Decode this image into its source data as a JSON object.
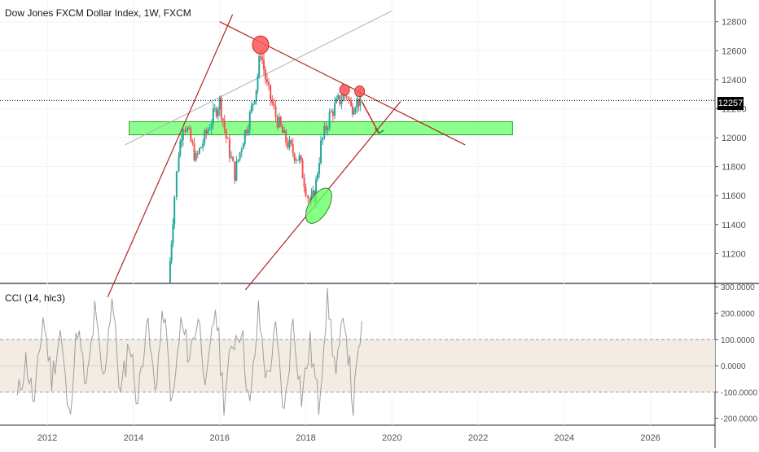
{
  "header": {
    "title": "Dow Jones FXCM Dollar Index, 1W, FXCM",
    "indicator_title": "CCI (14, hlc3)",
    "last_price_label": "12257"
  },
  "colors": {
    "up": "#26a69a",
    "down": "#ef5350",
    "trendline": "#b22222",
    "support_zone": "#66ff66",
    "cci_line": "#9e9e9e",
    "cci_band": "#f2ece3"
  },
  "chart_data": [
    {
      "type": "candlestick",
      "title": "Dow Jones FXCM Dollar Index, 1W, FXCM",
      "x_ticks": [
        "2012",
        "2014",
        "2016",
        "2018",
        "2020",
        "2022",
        "2024",
        "2026"
      ],
      "y_ticks": [
        "11200",
        "11400",
        "11600",
        "11800",
        "12000",
        "12200",
        "12400",
        "12600",
        "12800"
      ],
      "ylim": [
        11000,
        12950
      ],
      "xlim": [
        2010.9,
        2027.5
      ],
      "last_price": 12257,
      "series": [
        {
          "x": [
            2014.85,
            2014.95,
            2015.05,
            2015.15,
            2015.25,
            2015.45,
            2015.65,
            2015.85,
            2016.0,
            2016.15,
            2016.35,
            2016.55,
            2016.7,
            2016.85,
            2016.95,
            2017.1,
            2017.3,
            2017.5,
            2017.7,
            2017.85,
            2018.0,
            2018.1,
            2018.2,
            2018.35,
            2018.55,
            2018.75,
            2018.95,
            2019.05,
            2019.15,
            2019.3
          ],
          "values": [
            11150,
            11600,
            11900,
            12100,
            12050,
            11850,
            12000,
            12150,
            12250,
            12000,
            11750,
            12000,
            12150,
            12350,
            12600,
            12350,
            12150,
            12000,
            11900,
            11850,
            11650,
            11550,
            11600,
            11950,
            12150,
            12250,
            12300,
            12200,
            12250,
            12257
          ]
        }
      ],
      "annotations": [
        {
          "type": "channel_line",
          "from": [
            2013.4,
            10900
          ],
          "to": [
            2016.3,
            12850
          ]
        },
        {
          "type": "channel_line",
          "from": [
            2016.0,
            12800
          ],
          "to": [
            2021.7,
            11950
          ]
        },
        {
          "type": "channel_line",
          "from": [
            2016.6,
            10950
          ],
          "to": [
            2020.2,
            12250
          ]
        },
        {
          "type": "trendline",
          "from": [
            2013.8,
            11950
          ],
          "to": [
            2020.0,
            12875
          ]
        },
        {
          "type": "support_zone",
          "from": [
            2013.9,
            12020
          ],
          "to": [
            2022.8,
            12110
          ]
        },
        {
          "type": "marker_red",
          "at": [
            2016.95,
            12640
          ]
        },
        {
          "type": "marker_red",
          "at": [
            2018.9,
            12330
          ]
        },
        {
          "type": "marker_red",
          "at": [
            2019.25,
            12320
          ]
        },
        {
          "type": "marker_green",
          "at": [
            2018.3,
            11530
          ]
        },
        {
          "type": "arrow",
          "from": [
            2019.3,
            12250
          ],
          "to": [
            2019.7,
            12030
          ]
        }
      ]
    },
    {
      "type": "line",
      "title": "CCI (14, hlc3)",
      "y_ticks": [
        "300.0000",
        "200.0000",
        "100.0000",
        "0.0000",
        "-100.0000",
        "-200.0000"
      ],
      "ylim": [
        -220,
        310
      ],
      "band": [
        -100,
        100
      ],
      "series": [
        {
          "x": [
            2011.3,
            2011.5,
            2011.7,
            2011.9,
            2012.1,
            2012.3,
            2012.5,
            2012.7,
            2012.9,
            2013.1,
            2013.3,
            2013.5,
            2013.7,
            2013.9,
            2014.1,
            2014.3,
            2014.5,
            2014.7,
            2014.9,
            2015.1,
            2015.3,
            2015.5,
            2015.7,
            2015.9,
            2016.1,
            2016.3,
            2016.5,
            2016.7,
            2016.9,
            2017.1,
            2017.3,
            2017.5,
            2017.7,
            2017.9,
            2018.1,
            2018.3,
            2018.5,
            2018.7,
            2018.9,
            2019.1,
            2019.3
          ],
          "values": [
            -130,
            20,
            -150,
            190,
            -50,
            130,
            -200,
            150,
            -100,
            200,
            -60,
            270,
            -120,
            100,
            -140,
            180,
            -90,
            210,
            -160,
            160,
            40,
            190,
            -80,
            230,
            -130,
            90,
            150,
            -170,
            200,
            -60,
            130,
            -190,
            180,
            -120,
            80,
            -150,
            270,
            -40,
            200,
            -160,
            170
          ]
        }
      ]
    }
  ]
}
